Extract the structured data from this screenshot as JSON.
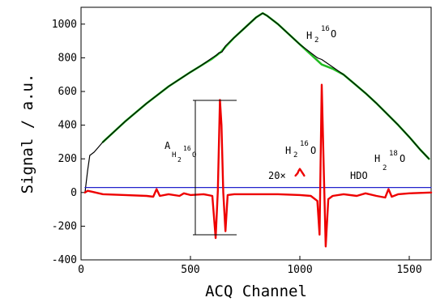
{
  "chart_data": {
    "type": "line",
    "title": "",
    "xlabel": "ACQ Channel",
    "ylabel": "Signal / a.u.",
    "xlim": [
      0,
      1600
    ],
    "ylim": [
      -400,
      1100
    ],
    "x_ticks": [
      0,
      500,
      1000,
      1500
    ],
    "y_ticks": [
      -400,
      -200,
      0,
      200,
      400,
      600,
      800,
      1000
    ],
    "grid": false,
    "series": [
      {
        "role": "measured-signal",
        "color": "#000000",
        "x": [
          18,
          30,
          40,
          60,
          100,
          200,
          300,
          400,
          500,
          550,
          600,
          618,
          630,
          645,
          660,
          700,
          750,
          800,
          830,
          850,
          900,
          950,
          1000,
          1050,
          1080,
          1100,
          1150,
          1200,
          1250,
          1300,
          1350,
          1400,
          1450,
          1500,
          1550,
          1590
        ],
        "y": [
          0,
          130,
          220,
          240,
          300,
          420,
          530,
          630,
          715,
          755,
          800,
          815,
          830,
          835,
          870,
          920,
          980,
          1040,
          1065,
          1050,
          1000,
          940,
          880,
          830,
          800,
          790,
          745,
          700,
          645,
          590,
          530,
          465,
          400,
          330,
          255,
          200
        ]
      },
      {
        "role": "fit",
        "color": "#22bb22",
        "x": [
          100,
          200,
          300,
          400,
          500,
          550,
          600,
          640,
          660,
          700,
          750,
          800,
          830,
          850,
          900,
          950,
          1000,
          1050,
          1100,
          1150,
          1200,
          1250,
          1300,
          1350,
          1400,
          1450,
          1500,
          1550,
          1590
        ],
        "y": [
          300,
          420,
          530,
          630,
          715,
          755,
          795,
          835,
          865,
          920,
          980,
          1040,
          1065,
          1050,
          1000,
          940,
          880,
          820,
          760,
          735,
          700,
          645,
          590,
          530,
          465,
          400,
          330,
          255,
          200
        ]
      },
      {
        "role": "baseline",
        "color": "#2222cc",
        "x": [
          18,
          200,
          400,
          600,
          800,
          1000,
          1200,
          1400,
          1600
        ],
        "y": [
          30,
          30,
          30,
          30,
          30,
          30,
          30,
          30,
          30
        ]
      },
      {
        "role": "residual",
        "color": "#ee0000",
        "x": [
          18,
          30,
          50,
          100,
          200,
          300,
          330,
          345,
          360,
          400,
          450,
          470,
          500,
          560,
          600,
          615,
          625,
          635,
          642,
          650,
          660,
          670,
          700,
          800,
          900,
          1000,
          1050,
          1080,
          1090,
          1100,
          1110,
          1118,
          1130,
          1150,
          1200,
          1260,
          1300,
          1350,
          1390,
          1405,
          1420,
          1450,
          1500,
          1600
        ],
        "y": [
          0,
          10,
          5,
          -10,
          -15,
          -20,
          -25,
          20,
          -20,
          -10,
          -20,
          -5,
          -15,
          -10,
          -20,
          -270,
          10,
          550,
          400,
          0,
          -230,
          -15,
          -10,
          -10,
          -10,
          -15,
          -20,
          -50,
          -250,
          640,
          100,
          -320,
          -40,
          -20,
          -10,
          -20,
          -5,
          -20,
          -30,
          20,
          -25,
          -10,
          -5,
          0
        ]
      },
      {
        "role": "inset-20x",
        "color": "#ee0000",
        "x": [
          980,
          990,
          995,
          1000,
          1005,
          1010,
          1015,
          1020
        ],
        "y": [
          100,
          115,
          130,
          140,
          130,
          120,
          110,
          100
        ]
      }
    ],
    "annotations": {
      "h216o_top_base": "H",
      "h216o_top_sub": "2",
      "h216o_top_sup": "16",
      "h216o_top_end": "O",
      "a_label": "A",
      "a_sub_h": "H",
      "a_sub_2": "2",
      "a_sub_16": "16",
      "a_sub_o": "O",
      "h216o_mid_base": "H",
      "h216o_mid_sub": "2",
      "h216o_mid_sup": "16",
      "h216o_mid_end": "O",
      "h218o_base": "H",
      "h218o_sub": "2",
      "h218o_sup": "18",
      "h218o_end": "O",
      "zoom": "20×",
      "hdo": "HDO"
    }
  }
}
